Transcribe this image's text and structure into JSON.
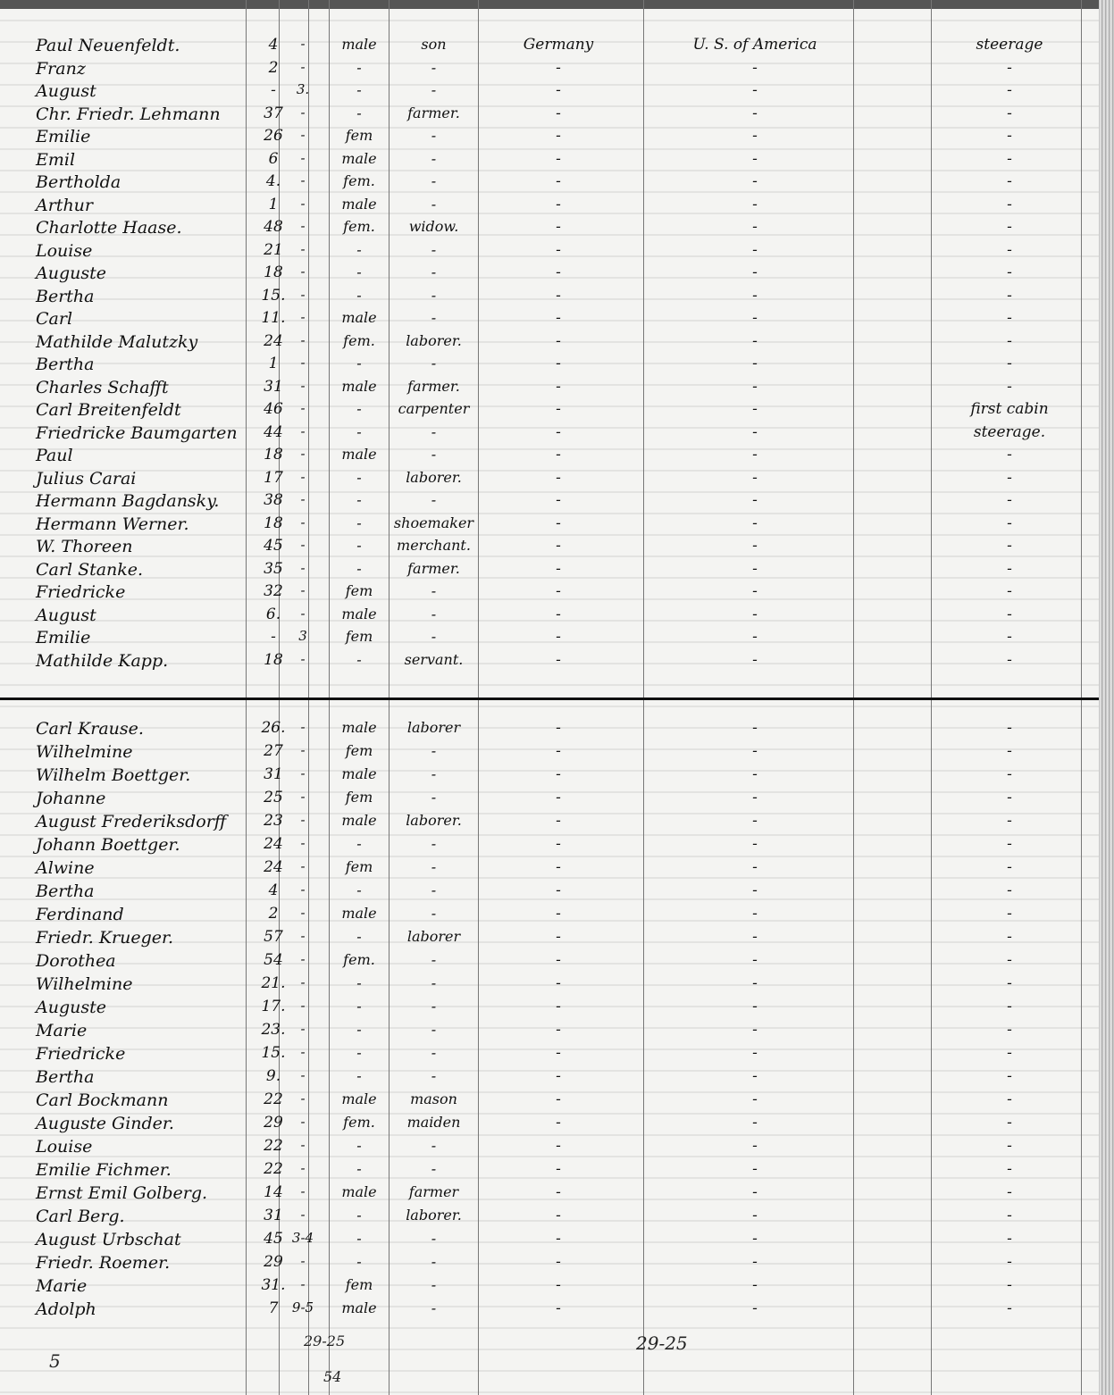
{
  "ditto": "-",
  "top_section": [
    [
      "Paul Neuenfeldt.",
      "4",
      "-",
      "male",
      "son",
      "Germany",
      "U. S. of America",
      "steerage"
    ],
    [
      "Franz",
      "2",
      "-",
      "-",
      "-",
      "-",
      "-",
      "-"
    ],
    [
      "August",
      "-",
      "3.",
      "-",
      "-",
      "-",
      "-",
      "-"
    ],
    [
      "Chr. Friedr. Lehmann",
      "37",
      "-",
      "-",
      "farmer.",
      "-",
      "-",
      "-"
    ],
    [
      "Emilie",
      "26",
      "-",
      "fem",
      "-",
      "-",
      "-",
      "-"
    ],
    [
      "Emil",
      "6",
      "-",
      "male",
      "-",
      "-",
      "-",
      "-"
    ],
    [
      "Bertholda",
      "4.",
      "-",
      "fem.",
      "-",
      "-",
      "-",
      "-"
    ],
    [
      "Arthur",
      "1",
      "-",
      "male",
      "-",
      "-",
      "-",
      "-"
    ],
    [
      "Charlotte Haase.",
      "48",
      "-",
      "fem.",
      "widow.",
      "-",
      "-",
      "-"
    ],
    [
      "Louise",
      "21",
      "-",
      "-",
      "-",
      "-",
      "-",
      "-"
    ],
    [
      "Auguste",
      "18",
      "-",
      "-",
      "-",
      "-",
      "-",
      "-"
    ],
    [
      "Bertha",
      "15.",
      "-",
      "-",
      "-",
      "-",
      "-",
      "-"
    ],
    [
      "Carl",
      "11.",
      "-",
      "male",
      "-",
      "-",
      "-",
      "-"
    ],
    [
      "Mathilde Malutzky",
      "24",
      "-",
      "fem.",
      "laborer.",
      "-",
      "-",
      "-"
    ],
    [
      "Bertha",
      "1",
      "-",
      "-",
      "-",
      "-",
      "-",
      "-"
    ],
    [
      "Charles Schafft",
      "31",
      "-",
      "male",
      "farmer.",
      "-",
      "-",
      "-"
    ],
    [
      "Carl Breitenfeldt",
      "46",
      "-",
      "-",
      "carpenter",
      "-",
      "-",
      "first cabin"
    ],
    [
      "Friedricke Baumgarten",
      "44",
      "-",
      "-",
      "-",
      "-",
      "-",
      "steerage."
    ],
    [
      "Paul",
      "18",
      "-",
      "male",
      "-",
      "-",
      "-",
      "-"
    ],
    [
      "Julius Carai",
      "17",
      "-",
      "-",
      "laborer.",
      "-",
      "-",
      "-"
    ],
    [
      "Hermann Bagdansky.",
      "38",
      "-",
      "-",
      "-",
      "-",
      "-",
      "-"
    ],
    [
      "Hermann Werner.",
      "18",
      "-",
      "-",
      "shoemaker",
      "-",
      "-",
      "-"
    ],
    [
      "W. Thoreen",
      "45",
      "-",
      "-",
      "merchant.",
      "-",
      "-",
      "-"
    ],
    [
      "Carl Stanke.",
      "35",
      "-",
      "-",
      "farmer.",
      "-",
      "-",
      "-"
    ],
    [
      "Friedricke",
      "32",
      "-",
      "fem",
      "-",
      "-",
      "-",
      "-"
    ],
    [
      "August",
      "6.",
      "-",
      "male",
      "-",
      "-",
      "-",
      "-"
    ],
    [
      "Emilie",
      "-",
      "3",
      "fem",
      "-",
      "-",
      "-",
      "-"
    ],
    [
      "Mathilde Kapp.",
      "18",
      "-",
      "-",
      "servant.",
      "-",
      "-",
      "-"
    ]
  ],
  "bottom_section": [
    [
      "Carl Krause.",
      "26.",
      "-",
      "male",
      "laborer",
      "-",
      "-",
      "-"
    ],
    [
      "Wilhelmine",
      "27",
      "-",
      "fem",
      "-",
      "-",
      "-",
      "-"
    ],
    [
      "Wilhelm Boettger.",
      "31",
      "-",
      "male",
      "-",
      "-",
      "-",
      "-"
    ],
    [
      "Johanne",
      "25",
      "-",
      "fem",
      "-",
      "-",
      "-",
      "-"
    ],
    [
      "August Frederiksdorff",
      "23",
      "-",
      "male",
      "laborer.",
      "-",
      "-",
      "-"
    ],
    [
      "Johann Boettger.",
      "24",
      "-",
      "-",
      "-",
      "-",
      "-",
      "-"
    ],
    [
      "Alwine",
      "24",
      "-",
      "fem",
      "-",
      "-",
      "-",
      "-"
    ],
    [
      "Bertha",
      "4",
      "-",
      "-",
      "-",
      "-",
      "-",
      "-"
    ],
    [
      "Ferdinand",
      "2",
      "-",
      "male",
      "-",
      "-",
      "-",
      "-"
    ],
    [
      "Friedr. Krueger.",
      "57",
      "-",
      "-",
      "laborer",
      "-",
      "-",
      "-"
    ],
    [
      "Dorothea",
      "54",
      "-",
      "fem.",
      "-",
      "-",
      "-",
      "-"
    ],
    [
      "Wilhelmine",
      "21.",
      "-",
      "-",
      "-",
      "-",
      "-",
      "-"
    ],
    [
      "Auguste",
      "17.",
      "-",
      "-",
      "-",
      "-",
      "-",
      "-"
    ],
    [
      "Marie",
      "23.",
      "-",
      "-",
      "-",
      "-",
      "-",
      "-"
    ],
    [
      "Friedricke",
      "15.",
      "-",
      "-",
      "-",
      "-",
      "-",
      "-"
    ],
    [
      "Bertha",
      "9.",
      "-",
      "-",
      "-",
      "-",
      "-",
      "-"
    ],
    [
      "Carl Bockmann",
      "22",
      "-",
      "male",
      "mason",
      "-",
      "-",
      "-"
    ],
    [
      "Auguste Ginder.",
      "29",
      "-",
      "fem.",
      "maiden",
      "-",
      "-",
      "-"
    ],
    [
      "Louise",
      "22",
      "-",
      "-",
      "-",
      "-",
      "-",
      "-"
    ],
    [
      "Emilie Fichmer.",
      "22",
      "-",
      "-",
      "-",
      "-",
      "-",
      "-"
    ],
    [
      "Ernst Emil Golberg.",
      "14",
      "-",
      "male",
      "farmer",
      "-",
      "-",
      "-"
    ],
    [
      "Carl Berg.",
      "31",
      "-",
      "-",
      "laborer.",
      "-",
      "-",
      "-"
    ],
    [
      "August Urbschat",
      "45",
      "3-4",
      "-",
      "-",
      "-",
      "-",
      "-"
    ],
    [
      "Friedr. Roemer.",
      "29",
      "-",
      "-",
      "-",
      "-",
      "-",
      "-"
    ],
    [
      "Marie",
      "31.",
      "-",
      "fem",
      "-",
      "-",
      "-",
      "-"
    ],
    [
      "Adolph",
      "7",
      "9-5",
      "male",
      "-",
      "-",
      "-",
      "-"
    ]
  ],
  "annotations": {
    "tally_left": "29-25",
    "total": "54",
    "tally_right": "29-25",
    "page_mark": "5"
  }
}
